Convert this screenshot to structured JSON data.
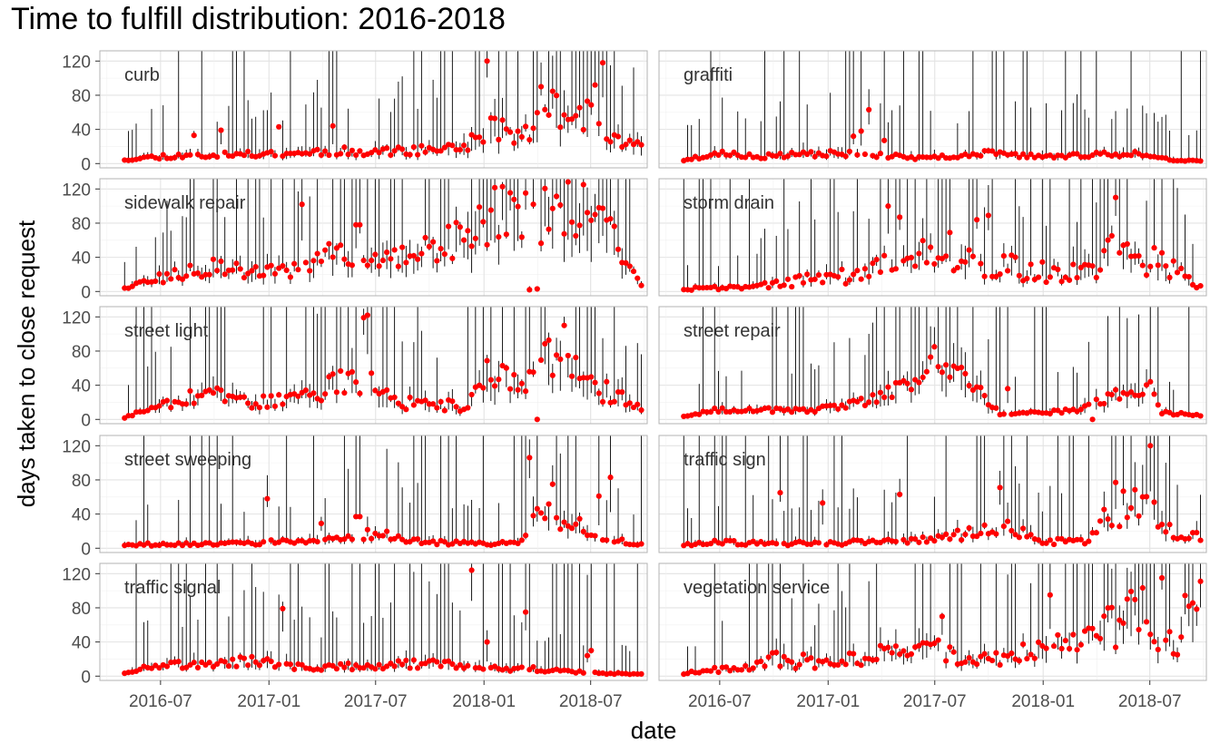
{
  "chart_data": {
    "type": "scatter",
    "title": "Time to fulfill distribution: 2016-2018",
    "xlabel": "date",
    "ylabel": "days taken to close request",
    "x_ticks": [
      "2016-07",
      "2017-01",
      "2017-07",
      "2018-01",
      "2018-07"
    ],
    "y_ticks": [
      0,
      40,
      80,
      120
    ],
    "ylim": [
      -5,
      132
    ],
    "xlim": [
      "2016-03-20",
      "2018-10-05"
    ],
    "grid": true,
    "point_color": "#ff0000",
    "range_color": "#000000",
    "panels": [
      {
        "name": "curb",
        "x_start": "2016-05-01",
        "x_end": "2018-09-25",
        "points": 135,
        "seed": 11,
        "profile": [
          [
            "2016-05-01",
            5
          ],
          [
            "2016-07-15",
            9
          ],
          [
            "2016-11-01",
            10
          ],
          [
            "2017-04-01",
            14
          ],
          [
            "2017-09-01",
            15
          ],
          [
            "2017-12-01",
            20
          ],
          [
            "2018-01-15",
            45
          ],
          [
            "2018-03-01",
            30
          ],
          [
            "2018-05-01",
            65
          ],
          [
            "2018-07-01",
            55
          ],
          [
            "2018-08-01",
            30
          ],
          [
            "2018-09-25",
            18
          ]
        ],
        "spikes": [
          [
            "2016-08-25",
            33
          ],
          [
            "2016-10-10",
            39
          ],
          [
            "2017-01-15",
            43
          ],
          [
            "2017-04-20",
            44
          ],
          [
            "2018-01-08",
            120
          ],
          [
            "2018-04-10",
            90
          ],
          [
            "2018-07-20",
            118
          ],
          [
            "2018-07-08",
            92
          ]
        ],
        "range_scale": 1.6,
        "spread": 0.35
      },
      {
        "name": "graffiti",
        "x_start": "2016-05-01",
        "x_end": "2018-09-25",
        "points": 135,
        "seed": 23,
        "profile": [
          [
            "2016-05-01",
            4
          ],
          [
            "2016-07-01",
            12
          ],
          [
            "2016-09-01",
            8
          ],
          [
            "2017-01-01",
            12
          ],
          [
            "2017-04-01",
            10
          ],
          [
            "2017-06-01",
            6
          ],
          [
            "2017-10-01",
            12
          ],
          [
            "2018-01-01",
            8
          ],
          [
            "2018-06-01",
            12
          ],
          [
            "2018-08-01",
            5
          ],
          [
            "2018-09-25",
            3
          ]
        ],
        "spikes": [
          [
            "2017-03-10",
            63
          ],
          [
            "2017-02-10",
            32
          ],
          [
            "2017-02-25",
            38
          ],
          [
            "2017-04-05",
            27
          ]
        ],
        "range_scale": 1.8,
        "spread": 0.3
      },
      {
        "name": "sidewalk repair",
        "x_start": "2016-05-01",
        "x_end": "2018-09-25",
        "points": 135,
        "seed": 37,
        "profile": [
          [
            "2016-05-01",
            5
          ],
          [
            "2016-07-01",
            15
          ],
          [
            "2016-10-01",
            28
          ],
          [
            "2017-01-01",
            22
          ],
          [
            "2017-03-01",
            28
          ],
          [
            "2017-05-01",
            45
          ],
          [
            "2017-08-01",
            35
          ],
          [
            "2017-11-01",
            60
          ],
          [
            "2018-02-01",
            95
          ],
          [
            "2018-04-01",
            80
          ],
          [
            "2018-06-01",
            110
          ],
          [
            "2018-08-01",
            70
          ],
          [
            "2018-09-25",
            8
          ]
        ],
        "spikes": [
          [
            "2017-03-01",
            102
          ],
          [
            "2017-06-01",
            78
          ],
          [
            "2018-03-20",
            2
          ],
          [
            "2018-04-01",
            3
          ]
        ],
        "range_scale": 1.5,
        "spread": 0.4
      },
      {
        "name": "storm drain",
        "x_start": "2016-05-01",
        "x_end": "2018-09-25",
        "points": 135,
        "seed": 41,
        "profile": [
          [
            "2016-05-01",
            3
          ],
          [
            "2016-09-01",
            6
          ],
          [
            "2016-12-01",
            15
          ],
          [
            "2017-03-01",
            20
          ],
          [
            "2017-06-01",
            40
          ],
          [
            "2017-09-01",
            35
          ],
          [
            "2017-12-01",
            25
          ],
          [
            "2018-03-01",
            20
          ],
          [
            "2018-05-01",
            45
          ],
          [
            "2018-07-01",
            40
          ],
          [
            "2018-09-25",
            6
          ]
        ],
        "spikes": [
          [
            "2017-04-15",
            100
          ],
          [
            "2017-05-01",
            87
          ],
          [
            "2017-10-01",
            89
          ],
          [
            "2018-05-01",
            110
          ],
          [
            "2017-07-25",
            69
          ],
          [
            "2017-09-10",
            84
          ]
        ],
        "range_scale": 1.7,
        "spread": 0.55
      },
      {
        "name": "street light",
        "x_start": "2016-05-01",
        "x_end": "2018-09-25",
        "points": 135,
        "seed": 53,
        "profile": [
          [
            "2016-05-01",
            2
          ],
          [
            "2016-07-01",
            20
          ],
          [
            "2016-09-01",
            30
          ],
          [
            "2016-12-01",
            20
          ],
          [
            "2017-03-01",
            25
          ],
          [
            "2017-06-01",
            50
          ],
          [
            "2017-08-01",
            20
          ],
          [
            "2017-12-01",
            15
          ],
          [
            "2018-01-15",
            60
          ],
          [
            "2018-03-01",
            40
          ],
          [
            "2018-05-01",
            75
          ],
          [
            "2018-07-01",
            40
          ],
          [
            "2018-09-25",
            13
          ]
        ],
        "spikes": [
          [
            "2017-06-10",
            119
          ],
          [
            "2017-06-20",
            122
          ],
          [
            "2018-05-20",
            110
          ],
          [
            "2018-04-01",
            0
          ]
        ],
        "range_scale": 1.6,
        "spread": 0.4
      },
      {
        "name": "street repair",
        "x_start": "2016-05-01",
        "x_end": "2018-09-25",
        "points": 135,
        "seed": 67,
        "profile": [
          [
            "2016-05-01",
            4
          ],
          [
            "2016-07-01",
            12
          ],
          [
            "2016-12-01",
            10
          ],
          [
            "2017-03-01",
            20
          ],
          [
            "2017-05-15",
            40
          ],
          [
            "2017-07-01",
            65
          ],
          [
            "2017-08-15",
            55
          ],
          [
            "2017-10-01",
            20
          ],
          [
            "2017-10-20",
            6
          ],
          [
            "2018-01-01",
            8
          ],
          [
            "2018-03-10",
            12
          ],
          [
            "2018-05-01",
            30
          ],
          [
            "2018-07-01",
            40
          ],
          [
            "2018-07-20",
            8
          ],
          [
            "2018-09-25",
            5
          ]
        ],
        "spikes": [
          [
            "2017-07-01",
            85
          ],
          [
            "2017-11-01",
            36
          ],
          [
            "2018-03-25",
            0
          ]
        ],
        "range_scale": 1.4,
        "spread": 0.25
      },
      {
        "name": "street sweeping",
        "x_start": "2016-05-01",
        "x_end": "2018-09-25",
        "points": 135,
        "seed": 79,
        "profile": [
          [
            "2016-05-01",
            4
          ],
          [
            "2016-12-01",
            6
          ],
          [
            "2017-05-01",
            10
          ],
          [
            "2017-07-01",
            18
          ],
          [
            "2017-09-01",
            8
          ],
          [
            "2018-01-01",
            5
          ],
          [
            "2018-03-01",
            8
          ],
          [
            "2018-04-15",
            45
          ],
          [
            "2018-06-01",
            30
          ],
          [
            "2018-07-15",
            12
          ],
          [
            "2018-09-25",
            4
          ]
        ],
        "spikes": [
          [
            "2017-01-01",
            58
          ],
          [
            "2017-04-01",
            29
          ],
          [
            "2017-06-01",
            37
          ],
          [
            "2018-03-20",
            106
          ],
          [
            "2018-04-25",
            75
          ],
          [
            "2018-08-01",
            83
          ],
          [
            "2018-07-15",
            61
          ]
        ],
        "range_scale": 1.9,
        "spread": 0.4
      },
      {
        "name": "traffic sign",
        "x_start": "2016-05-01",
        "x_end": "2018-09-25",
        "points": 135,
        "seed": 83,
        "profile": [
          [
            "2016-05-01",
            4
          ],
          [
            "2016-07-01",
            8
          ],
          [
            "2016-10-01",
            5
          ],
          [
            "2017-05-01",
            8
          ],
          [
            "2017-08-01",
            15
          ],
          [
            "2017-11-01",
            30
          ],
          [
            "2018-01-01",
            8
          ],
          [
            "2018-03-15",
            8
          ],
          [
            "2018-05-01",
            45
          ],
          [
            "2018-07-01",
            50
          ],
          [
            "2018-08-15",
            10
          ],
          [
            "2018-09-25",
            15
          ]
        ],
        "spikes": [
          [
            "2016-10-10",
            65
          ],
          [
            "2016-12-25",
            53
          ],
          [
            "2017-05-01",
            63
          ],
          [
            "2017-10-20",
            71
          ],
          [
            "2018-07-01",
            120
          ],
          [
            "2018-05-01",
            77
          ]
        ],
        "range_scale": 1.8,
        "spread": 0.45
      },
      {
        "name": "traffic signal",
        "x_start": "2016-05-01",
        "x_end": "2018-09-25",
        "points": 135,
        "seed": 97,
        "profile": [
          [
            "2016-05-01",
            4
          ],
          [
            "2016-07-01",
            15
          ],
          [
            "2016-09-01",
            12
          ],
          [
            "2016-12-01",
            18
          ],
          [
            "2017-03-01",
            10
          ],
          [
            "2017-07-01",
            12
          ],
          [
            "2017-10-01",
            15
          ],
          [
            "2018-01-01",
            10
          ],
          [
            "2018-04-01",
            8
          ],
          [
            "2018-07-01",
            4
          ],
          [
            "2018-09-25",
            2
          ]
        ],
        "spikes": [
          [
            "2017-01-25",
            79
          ],
          [
            "2017-12-10",
            124
          ],
          [
            "2018-01-05",
            40
          ],
          [
            "2018-03-10",
            75
          ],
          [
            "2018-06-25",
            24
          ],
          [
            "2018-07-01",
            30
          ]
        ],
        "range_scale": 1.8,
        "spread": 0.35
      },
      {
        "name": "vegetation service",
        "x_start": "2016-05-01",
        "x_end": "2018-09-25",
        "points": 135,
        "seed": 101,
        "profile": [
          [
            "2016-05-01",
            3
          ],
          [
            "2016-07-01",
            8
          ],
          [
            "2016-10-01",
            20
          ],
          [
            "2017-01-01",
            15
          ],
          [
            "2017-04-01",
            25
          ],
          [
            "2017-07-01",
            30
          ],
          [
            "2017-10-01",
            20
          ],
          [
            "2018-01-01",
            30
          ],
          [
            "2018-03-01",
            40
          ],
          [
            "2018-05-01",
            60
          ],
          [
            "2018-07-01",
            95
          ],
          [
            "2018-08-01",
            20
          ],
          [
            "2018-09-25",
            110
          ]
        ],
        "spikes": [
          [
            "2017-07-15",
            70
          ],
          [
            "2018-01-10",
            95
          ],
          [
            "2018-07-20",
            115
          ],
          [
            "2018-09-25",
            111
          ],
          [
            "2018-08-05",
            52
          ]
        ],
        "range_scale": 1.6,
        "spread": 0.5
      }
    ]
  }
}
